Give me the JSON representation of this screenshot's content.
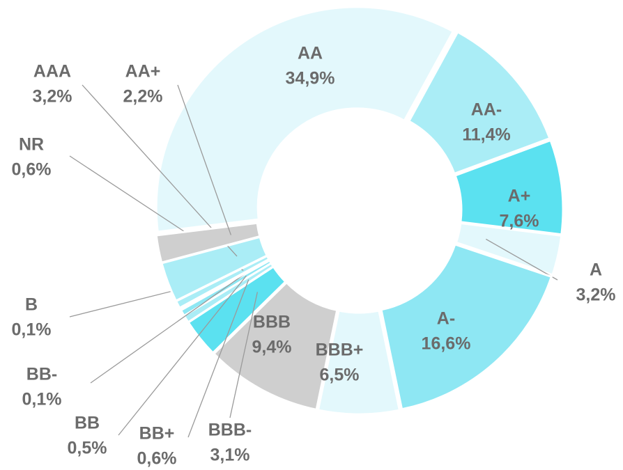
{
  "chart_data": {
    "type": "donut",
    "categories": [
      "AA",
      "AA-",
      "A+",
      "A",
      "A-",
      "BBB+",
      "BBB",
      "BBB-",
      "BB+",
      "BB",
      "BB-",
      "B",
      "NR",
      "AAA",
      "AA+"
    ],
    "values": [
      34.9,
      11.4,
      7.6,
      3.2,
      16.6,
      6.5,
      9.4,
      3.1,
      0.6,
      0.5,
      0.1,
      0.1,
      0.6,
      3.2,
      2.2
    ],
    "value_labels": [
      "34,9%",
      "11,4%",
      "7,6%",
      "3,2%",
      "16,6%",
      "6,5%",
      "9,4%",
      "3,1%",
      "0,6%",
      "0,5%",
      "0,1%",
      "0,1%",
      "0,6%",
      "3,2%",
      "2,2%"
    ],
    "colors": [
      "#e3f8fc",
      "#aaedf6",
      "#5be1f0",
      "#e3f8fc",
      "#8ee7f3",
      "#e3f8fc",
      "#cfcfcf",
      "#5be1f0",
      "#aaedf6",
      "#8ee7f3",
      "#e3f8fc",
      "#555555",
      "#aaedf6",
      "#aaedf6",
      "#cfcfcf"
    ]
  }
}
